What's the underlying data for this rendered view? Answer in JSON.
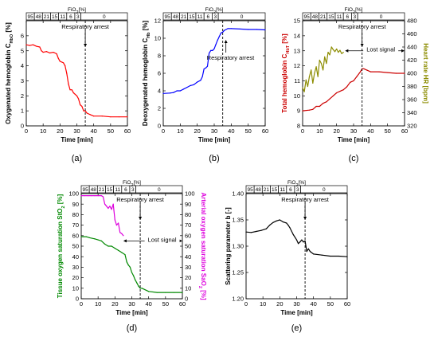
{
  "chart_data": [
    {
      "id": "a",
      "type": "line",
      "caption": "(a)",
      "xlabel": "Time [min]",
      "ylabel": "Oxygenated hemoglobin C",
      "ylabel_sub": "HbO",
      "ylabel_unit": " [%]",
      "xlim": [
        0,
        60
      ],
      "ylim": [
        0,
        7
      ],
      "xticks": [
        0,
        10,
        20,
        30,
        40,
        50,
        60
      ],
      "yticks": [
        0,
        1,
        2,
        3,
        4,
        5,
        6
      ],
      "fio2": {
        "label": "FiO",
        "sub": "2",
        "unit": "[%]",
        "segments": [
          "95",
          "48",
          "21",
          "15",
          "11",
          "6",
          "3",
          "0"
        ]
      },
      "annotations": [
        {
          "text": "Respiratory arrest"
        }
      ],
      "vline_x": 35,
      "series": [
        {
          "color": "#ff0000",
          "x": [
            0,
            2,
            4,
            6,
            8,
            9,
            10,
            12,
            14,
            16,
            18,
            19,
            20,
            22,
            23,
            24,
            25,
            26,
            27,
            28,
            29,
            30,
            31,
            32,
            33,
            34,
            35,
            36,
            38,
            40,
            45,
            50,
            55,
            60
          ],
          "y": [
            5.4,
            5.35,
            5.4,
            5.3,
            5.25,
            5.0,
            4.9,
            4.95,
            4.85,
            4.9,
            4.8,
            4.5,
            4.3,
            4.2,
            4.0,
            3.5,
            2.8,
            2.4,
            2.4,
            2.2,
            2.1,
            2.0,
            1.8,
            1.4,
            1.3,
            1.0,
            1.0,
            0.85,
            0.75,
            0.65,
            0.65,
            0.6,
            0.6,
            0.6
          ]
        }
      ]
    },
    {
      "id": "b",
      "type": "line",
      "caption": "(b)",
      "xlabel": "Time [min]",
      "ylabel": "Deoxygenated hemoglobin C",
      "ylabel_sub": "Hb",
      "ylabel_unit": " [%]",
      "xlim": [
        0,
        60
      ],
      "ylim": [
        0,
        12
      ],
      "xticks": [
        0,
        10,
        20,
        30,
        40,
        50,
        60
      ],
      "yticks": [
        0,
        2,
        4,
        6,
        8,
        10,
        12
      ],
      "fio2": {
        "label": "FiO",
        "sub": "2",
        "unit": "[%]",
        "segments": [
          "95",
          "48",
          "21",
          "15",
          "11",
          "6",
          "3",
          "0"
        ]
      },
      "annotations": [
        {
          "text": "Respiratory arrest"
        }
      ],
      "vline_x": 35,
      "series": [
        {
          "color": "#0000ff",
          "x": [
            0,
            4,
            6,
            8,
            10,
            12,
            14,
            16,
            18,
            20,
            22,
            23,
            24,
            25,
            26,
            27,
            28,
            29,
            30,
            31,
            32,
            33,
            34,
            35,
            36,
            38,
            40,
            45,
            50,
            55,
            60
          ],
          "y": [
            3.7,
            3.75,
            3.8,
            4.0,
            4.0,
            4.2,
            4.4,
            4.6,
            4.7,
            5.0,
            5.2,
            5.6,
            6.5,
            6.6,
            6.8,
            8.3,
            8.6,
            8.6,
            8.8,
            9.3,
            9.8,
            10.2,
            10.6,
            10.7,
            10.9,
            11.1,
            11.1,
            11.05,
            11.0,
            11.0,
            10.95
          ]
        }
      ]
    },
    {
      "id": "c",
      "type": "line",
      "caption": "(c)",
      "xlabel": "Time [min]",
      "ylabel": "Total hemoglobin C",
      "ylabel_sub": "HbT",
      "ylabel_unit": " [%]",
      "y2label": "Heart rate HR [bpm]",
      "xlim": [
        0,
        60
      ],
      "ylim": [
        8,
        15
      ],
      "y2lim": [
        320,
        480
      ],
      "xticks": [
        0,
        10,
        20,
        30,
        40,
        50,
        60
      ],
      "yticks": [
        8,
        9,
        10,
        11,
        12,
        13,
        14,
        15
      ],
      "y2ticks": [
        320,
        340,
        360,
        380,
        400,
        420,
        440,
        460,
        480
      ],
      "fio2": {
        "label": "FiO",
        "sub": "2",
        "unit": "[%]",
        "segments": [
          "95",
          "48",
          "21",
          "15",
          "11",
          "6",
          "3",
          "0"
        ]
      },
      "annotations": [
        {
          "text": "Respiratory arrest"
        },
        {
          "text": "Lost signal"
        }
      ],
      "vline_x": 35,
      "series": [
        {
          "color": "#cc0000",
          "x": [
            0,
            4,
            6,
            8,
            10,
            12,
            14,
            16,
            18,
            20,
            22,
            24,
            26,
            28,
            30,
            32,
            34,
            35,
            36,
            38,
            40,
            45,
            50,
            55,
            60
          ],
          "y": [
            9.0,
            9.05,
            9.1,
            9.3,
            9.3,
            9.5,
            9.6,
            9.8,
            10.0,
            10.2,
            10.3,
            10.4,
            10.6,
            10.9,
            11.0,
            11.3,
            11.6,
            11.8,
            11.8,
            11.7,
            11.6,
            11.6,
            11.55,
            11.5,
            11.5
          ]
        },
        {
          "color": "#8c8c00",
          "axis": "y2",
          "x": [
            0,
            1,
            2,
            3,
            4,
            5,
            6,
            7,
            8,
            9,
            10,
            11,
            12,
            13,
            14,
            15,
            16,
            17,
            18,
            19,
            20,
            21,
            22,
            23,
            24
          ],
          "y": [
            378,
            372,
            390,
            380,
            395,
            405,
            385,
            400,
            410,
            395,
            420,
            415,
            405,
            425,
            415,
            432,
            428,
            440,
            436,
            433,
            437,
            432,
            435,
            430,
            432
          ]
        }
      ]
    },
    {
      "id": "d",
      "type": "line",
      "caption": "(d)",
      "xlabel": "Time [min]",
      "ylabel": "Tissue oxygen saturation StO",
      "ylabel_sub": "2",
      "ylabel_unit": " [%]",
      "y2label": "Arterial oxygen saturation SaO",
      "y2label_sub": "2",
      "y2label_unit": " [%]",
      "xlim": [
        0,
        60
      ],
      "ylim": [
        0,
        100
      ],
      "y2lim": [
        0,
        100
      ],
      "xticks": [
        0,
        10,
        20,
        30,
        40,
        50,
        60
      ],
      "yticks": [
        0,
        10,
        20,
        30,
        40,
        50,
        60,
        70,
        80,
        90,
        100
      ],
      "y2ticks": [
        0,
        10,
        20,
        30,
        40,
        50,
        60,
        70,
        80,
        90,
        100
      ],
      "fio2": {
        "label": "FiO",
        "sub": "2",
        "unit": "[%]",
        "segments": [
          "95",
          "48",
          "21",
          "15",
          "11",
          "6",
          "3",
          "0"
        ]
      },
      "annotations": [
        {
          "text": "Respiratory arrest"
        },
        {
          "text": "Lost signal"
        }
      ],
      "vline_x": 35,
      "series": [
        {
          "color": "#008800",
          "x": [
            0,
            3,
            5,
            8,
            10,
            12,
            14,
            16,
            18,
            20,
            22,
            24,
            26,
            27,
            28,
            29,
            30,
            31,
            32,
            33,
            34,
            35,
            36,
            40,
            45,
            50,
            55,
            60
          ],
          "y": [
            59,
            59,
            58,
            57,
            56,
            55,
            52,
            50,
            50,
            48,
            46,
            44,
            42,
            35,
            32,
            30,
            25,
            22,
            18,
            15,
            12,
            10,
            10,
            7,
            6,
            6,
            6,
            6
          ]
        },
        {
          "color": "#dd00dd",
          "axis": "y2",
          "x": [
            0,
            2,
            4,
            6,
            8,
            10,
            12,
            13,
            14,
            15,
            16,
            17,
            18,
            19,
            20,
            21,
            22,
            23,
            24,
            25
          ],
          "y": [
            98,
            98,
            98,
            98,
            98,
            98,
            98,
            97,
            90,
            88,
            86,
            88,
            85,
            90,
            75,
            70,
            72,
            63,
            62,
            60
          ]
        }
      ]
    },
    {
      "id": "e",
      "type": "line",
      "caption": "(e)",
      "xlabel": "Time [min]",
      "ylabel": "Scattering parameter b [-]",
      "xlim": [
        0,
        60
      ],
      "ylim": [
        1.2,
        1.4
      ],
      "xticks": [
        0,
        10,
        20,
        30,
        40,
        50,
        60
      ],
      "yticks": [
        1.2,
        1.25,
        1.3,
        1.35,
        1.4
      ],
      "fio2": {
        "label": "FiO",
        "sub": "2",
        "unit": "[%]",
        "segments": [
          "95",
          "48",
          "21",
          "15",
          "11",
          "6",
          "3",
          "0"
        ]
      },
      "annotations": [
        {
          "text": "Respiratory arrest"
        }
      ],
      "vline_x": 35,
      "series": [
        {
          "color": "#000000",
          "x": [
            0,
            3,
            6,
            9,
            12,
            14,
            16,
            18,
            20,
            22,
            24,
            25,
            26,
            28,
            30,
            31,
            32,
            33,
            34,
            35,
            36,
            37,
            38,
            40,
            45,
            50,
            55,
            60
          ],
          "y": [
            1.327,
            1.326,
            1.328,
            1.33,
            1.333,
            1.34,
            1.345,
            1.348,
            1.35,
            1.346,
            1.344,
            1.34,
            1.335,
            1.322,
            1.312,
            1.305,
            1.308,
            1.312,
            1.308,
            1.31,
            1.29,
            1.295,
            1.29,
            1.285,
            1.283,
            1.281,
            1.281,
            1.28
          ]
        }
      ]
    }
  ]
}
